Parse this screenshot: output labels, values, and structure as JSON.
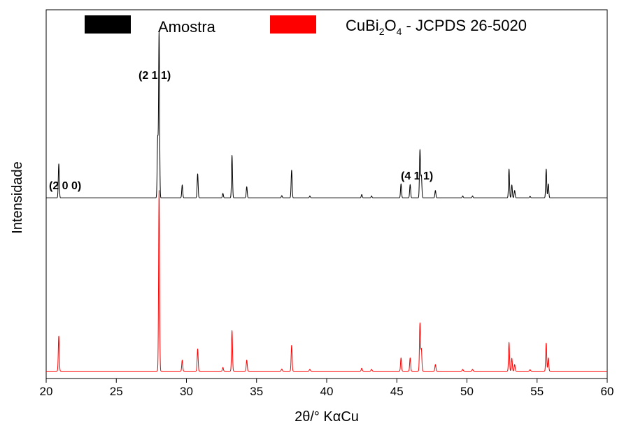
{
  "chart_data": {
    "type": "line",
    "xlabel": "2θ/° KαCu",
    "ylabel": "Intensidade",
    "xlim": [
      20,
      60
    ],
    "ylim": [
      0,
      100
    ],
    "xticks": [
      20,
      25,
      30,
      35,
      40,
      45,
      50,
      55,
      60
    ],
    "grid": false,
    "legend_position": "top",
    "legend": [
      {
        "label": "Amostra",
        "color": "#000000"
      },
      {
        "label_base": "CuBi",
        "label_sub1": "2",
        "label_mid": "O",
        "label_sub2": "4",
        "label_rest": " - JCPDS 26-5020",
        "color": "#ff0000"
      }
    ],
    "peak_labels": [
      {
        "text": "(2 0 0)",
        "x": 20.9,
        "y": 58
      },
      {
        "text": "(2 1 1)",
        "x": 28.0,
        "y": 95
      },
      {
        "text": "(4 1 1)",
        "x": 46.7,
        "y": 62
      }
    ],
    "series": [
      {
        "name": "Amostra",
        "color": "#000000",
        "baseline": 49,
        "peaks": [
          [
            20.9,
            9.2
          ],
          [
            27.95,
            16
          ],
          [
            28.05,
            45
          ],
          [
            29.7,
            3.5
          ],
          [
            30.8,
            6.5
          ],
          [
            32.6,
            1.2
          ],
          [
            33.25,
            11.5
          ],
          [
            34.3,
            3.0
          ],
          [
            36.8,
            0.6
          ],
          [
            37.5,
            7.5
          ],
          [
            38.8,
            0.5
          ],
          [
            42.5,
            0.9
          ],
          [
            43.2,
            0.5
          ],
          [
            45.3,
            3.8
          ],
          [
            45.95,
            3.6
          ],
          [
            46.65,
            13
          ],
          [
            46.75,
            6
          ],
          [
            47.75,
            2.0
          ],
          [
            49.7,
            0.5
          ],
          [
            50.4,
            0.5
          ],
          [
            53.0,
            7.8
          ],
          [
            53.2,
            3.5
          ],
          [
            53.4,
            2.0
          ],
          [
            54.5,
            0.4
          ],
          [
            55.65,
            7.8
          ],
          [
            55.8,
            3.8
          ]
        ]
      },
      {
        "name": "CuBi2O4 - JCPDS 26-5020",
        "color": "#ff0000",
        "baseline": 2,
        "peaks": [
          [
            20.9,
            9.5
          ],
          [
            28.05,
            49
          ],
          [
            29.7,
            3.0
          ],
          [
            30.8,
            6.0
          ],
          [
            32.6,
            1.0
          ],
          [
            33.25,
            11.0
          ],
          [
            34.3,
            3.0
          ],
          [
            36.8,
            0.6
          ],
          [
            37.5,
            7.0
          ],
          [
            38.8,
            0.5
          ],
          [
            42.5,
            0.8
          ],
          [
            43.2,
            0.5
          ],
          [
            45.3,
            3.6
          ],
          [
            45.95,
            3.6
          ],
          [
            46.65,
            13
          ],
          [
            46.75,
            6
          ],
          [
            47.75,
            1.8
          ],
          [
            49.7,
            0.5
          ],
          [
            50.4,
            0.5
          ],
          [
            53.0,
            7.8
          ],
          [
            53.2,
            3.5
          ],
          [
            53.4,
            1.8
          ],
          [
            54.5,
            0.4
          ],
          [
            55.65,
            7.6
          ],
          [
            55.8,
            3.6
          ]
        ]
      }
    ]
  }
}
